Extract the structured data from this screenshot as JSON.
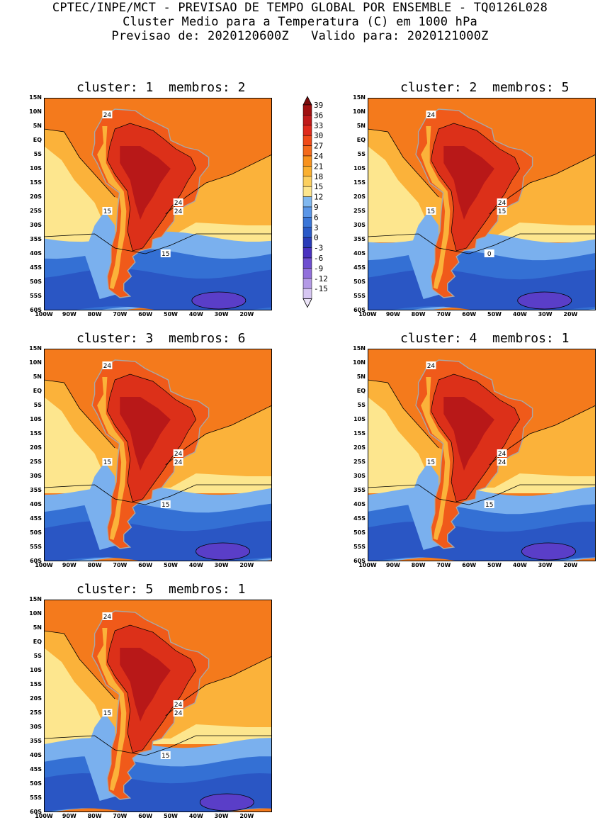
{
  "header": {
    "line1": "CPTEC/INPE/MCT - PREVISAO DE TEMPO GLOBAL POR ENSEMBLE - TQ0126L028",
    "line2": "Cluster Medio para a Temperatura (C) em 1000 hPa",
    "line3": "Previsao de: 2020120600Z   Valido para: 2020121000Z"
  },
  "panels": [
    {
      "title": "cluster: 1  membros: 2",
      "contour_labels": [
        "24",
        "24",
        "24",
        "15",
        "15"
      ]
    },
    {
      "title": "cluster: 2  membros: 5",
      "contour_labels": [
        "24",
        "24",
        "15",
        "15",
        "0"
      ]
    },
    {
      "title": "cluster: 3  membros: 6",
      "contour_labels": [
        "24",
        "24",
        "24",
        "15",
        "15"
      ]
    },
    {
      "title": "cluster: 4  membros: 1",
      "contour_labels": [
        "24",
        "24",
        "24",
        "15",
        "15"
      ]
    },
    {
      "title": "cluster: 5  membros: 1",
      "contour_labels": [
        "24",
        "24",
        "24",
        "15",
        "15"
      ]
    }
  ],
  "axes": {
    "lat_labels": [
      "15N",
      "10N",
      "5N",
      "EQ",
      "5S",
      "10S",
      "15S",
      "20S",
      "25S",
      "30S",
      "35S",
      "40S",
      "45S",
      "50S",
      "55S",
      "60S"
    ],
    "lon_labels": [
      "100W",
      "90W",
      "80W",
      "70W",
      "60W",
      "50W",
      "40W",
      "30W",
      "20W"
    ]
  },
  "colorbar": {
    "labels": [
      "39",
      "36",
      "33",
      "30",
      "27",
      "24",
      "21",
      "18",
      "15",
      "12",
      "9",
      "6",
      "3",
      "0",
      "-3",
      "-6",
      "-9",
      "-12",
      "-15"
    ],
    "colors": [
      "#a01010",
      "#c01a1a",
      "#e02a1c",
      "#f04a18",
      "#f46a1c",
      "#f8921e",
      "#fab030",
      "#fcd060",
      "#fde68e",
      "#80b8f0",
      "#5a96e8",
      "#3a76d8",
      "#2a5ac8",
      "#2a3cb8",
      "#4a32c0",
      "#6e4ed0",
      "#9270dc",
      "#b49ae6",
      "#d6c6f2"
    ]
  },
  "colors": {
    "hot": "#b81818",
    "warm": "#f05a1a",
    "ocean_warm": "#f47a1c",
    "mid": "#fbb23a",
    "pale": "#fde68e",
    "cool": "#7ab0ee",
    "cold": "#3470d4",
    "colder": "#2a56c4",
    "coldest": "#5a3ec8",
    "coast": "#a8a8a8"
  }
}
